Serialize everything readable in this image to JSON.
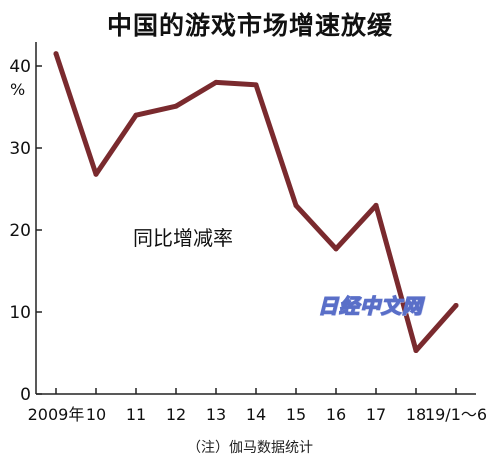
{
  "title": "中国的游戏市场增速放缓",
  "footnote": "（注）伽马数据统计",
  "watermark": "日经中文网",
  "colors": {
    "line": "#7a2a2e",
    "axis": "#222222",
    "text": "#111111"
  },
  "chart_data": {
    "type": "line",
    "title": "中国的游戏市场增速放缓",
    "x": [
      "2009年",
      "10",
      "11",
      "12",
      "13",
      "14",
      "15",
      "16",
      "17",
      "18",
      "19/1～6"
    ],
    "series": [
      {
        "values": [
          41.5,
          26.8,
          34.0,
          35.1,
          38.0,
          37.7,
          23.0,
          17.7,
          23.0,
          5.3,
          10.8
        ]
      }
    ],
    "annotation": "同比增减率",
    "ylabel": "%",
    "yticks": [
      0,
      10,
      20,
      30,
      40
    ],
    "ylim": [
      0,
      42
    ],
    "grid": false,
    "legend": "none"
  }
}
